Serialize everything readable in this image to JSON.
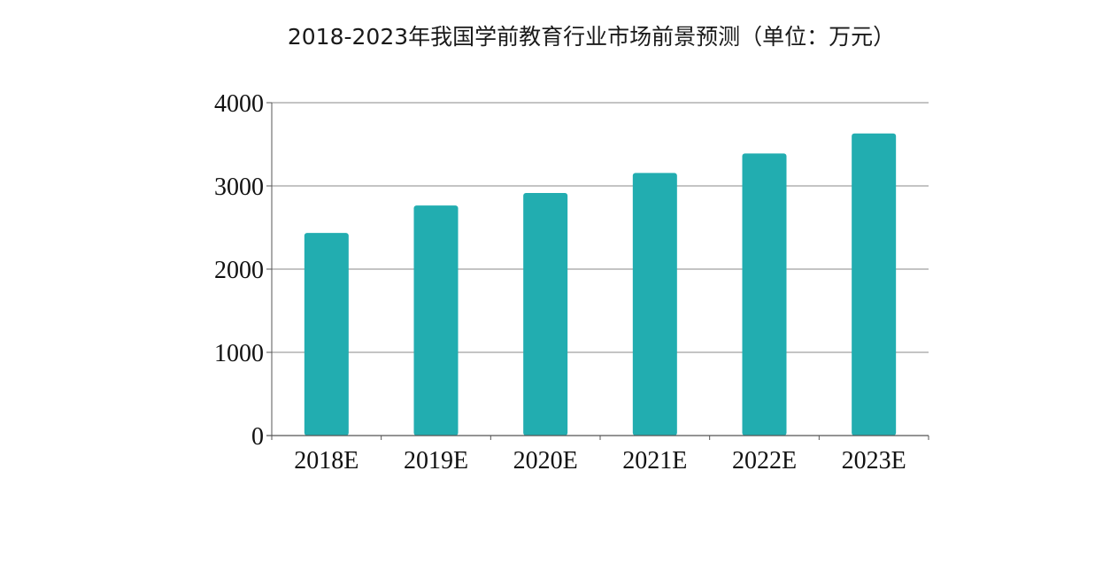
{
  "chart_data": {
    "type": "bar",
    "title": "2018-2023年我国学前教育行业市场前景预测（单位：万元）",
    "categories": [
      "2018E",
      "2019E",
      "2020E",
      "2021E",
      "2022E",
      "2023E"
    ],
    "values": [
      2435,
      2765,
      2915,
      3155,
      3390,
      3630
    ],
    "ylim": [
      0,
      4000
    ],
    "yticks": [
      0,
      1000,
      2000,
      3000,
      4000
    ],
    "xlabel": "",
    "ylabel": "",
    "grid": true,
    "legend": "none",
    "bar_color": "#22adb0"
  }
}
